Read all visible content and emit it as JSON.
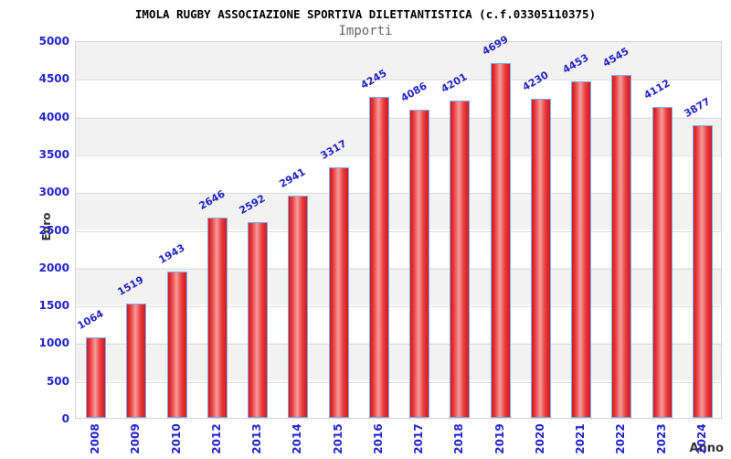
{
  "header": {
    "title": "IMOLA RUGBY ASSOCIAZIONE SPORTIVA DILETTANTISTICA (c.f.03305110375)",
    "subtitle": "Importi"
  },
  "chart_data": {
    "type": "bar",
    "title": "IMOLA RUGBY ASSOCIAZIONE SPORTIVA DILETTANTISTICA (c.f.03305110375)",
    "subtitle": "Importi",
    "xlabel": "Anno",
    "ylabel": "Euro",
    "categories": [
      "2008",
      "2009",
      "2010",
      "2012",
      "2013",
      "2014",
      "2015",
      "2016",
      "2017",
      "2018",
      "2019",
      "2020",
      "2021",
      "2022",
      "2023",
      "2024"
    ],
    "values": [
      1064,
      1519,
      1943,
      2646,
      2592,
      2941,
      3317,
      4245,
      4086,
      4201,
      4699,
      4230,
      4453,
      4545,
      4112,
      3877
    ],
    "ylim": [
      0,
      5000
    ],
    "ytick_step": 500,
    "ytick_labels": [
      "0",
      "500",
      "1000",
      "1500",
      "2000",
      "2500",
      "3000",
      "3500",
      "4000",
      "4500",
      "5000"
    ],
    "grid": "horizontal",
    "legend": "none",
    "colors": {
      "bar_fill": "#e32636",
      "bar_highlight": "#f59c9c",
      "bar_border": "#7badec",
      "value_label": "#2424c4",
      "tick_label": "#2424cc",
      "axis_title": "#333333",
      "band_gray": "#f2f2f2",
      "band_white": "#ffffff",
      "gridline": "#dedede",
      "title": "#000000",
      "subtitle": "#666666"
    }
  }
}
